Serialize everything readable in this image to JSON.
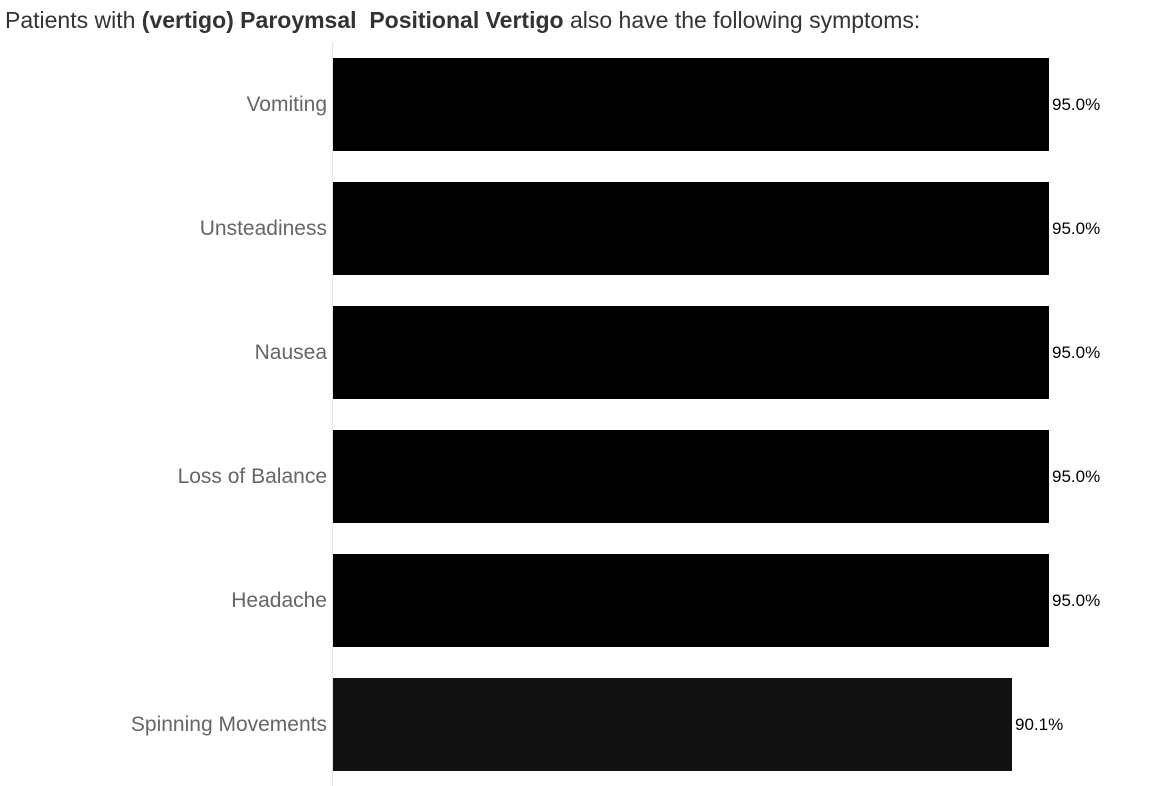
{
  "title": {
    "prefix": "Patients with ",
    "bold_part": "(vertigo) Paroymsal  Positional Vertigo",
    "suffix": " also have the following symptoms:"
  },
  "colors": {
    "bar_primary": "#000000",
    "bar_last": "#111111",
    "category_text": "#666666",
    "value_text": "#000000",
    "axis_line": "#e6e6e6"
  },
  "chart_data": {
    "type": "bar",
    "orientation": "horizontal",
    "categories": [
      "Vomiting",
      "Unsteadiness",
      "Nausea",
      "Loss of Balance",
      "Headache",
      "Spinning Movements"
    ],
    "values": [
      95.0,
      95.0,
      95.0,
      95.0,
      95.0,
      90.1
    ],
    "value_labels": [
      "95.0%",
      "95.0%",
      "95.0%",
      "95.0%",
      "95.0%",
      "90.1%"
    ],
    "xlim": [
      0,
      95.0
    ],
    "grid": false,
    "legend": "none"
  }
}
